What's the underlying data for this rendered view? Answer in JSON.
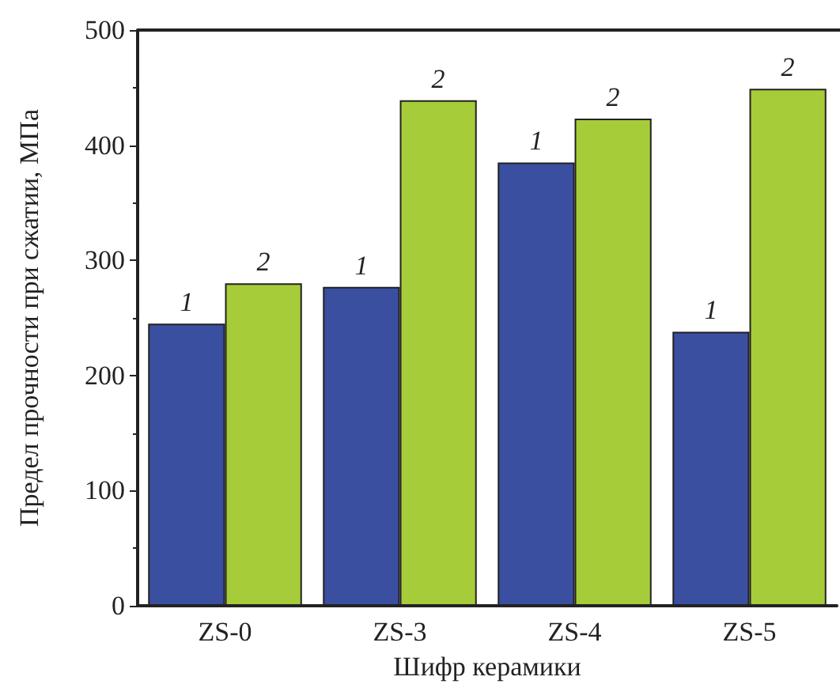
{
  "chart_data": {
    "type": "bar",
    "xlabel": "Шифр керамики",
    "ylabel": "Предел прочности при сжатии, МПа",
    "categories": [
      "ZS-0",
      "ZS-3",
      "ZS-4",
      "ZS-5"
    ],
    "series": [
      {
        "name": "1",
        "color": "#3a4fa0",
        "values": [
          245,
          277,
          385,
          238
        ]
      },
      {
        "name": "2",
        "color": "#a6cd39",
        "values": [
          280,
          439,
          423,
          449
        ]
      }
    ],
    "ylim": [
      0,
      500
    ],
    "yticks": [
      0,
      100,
      200,
      300,
      400,
      500
    ],
    "grid": false,
    "legend": false
  }
}
